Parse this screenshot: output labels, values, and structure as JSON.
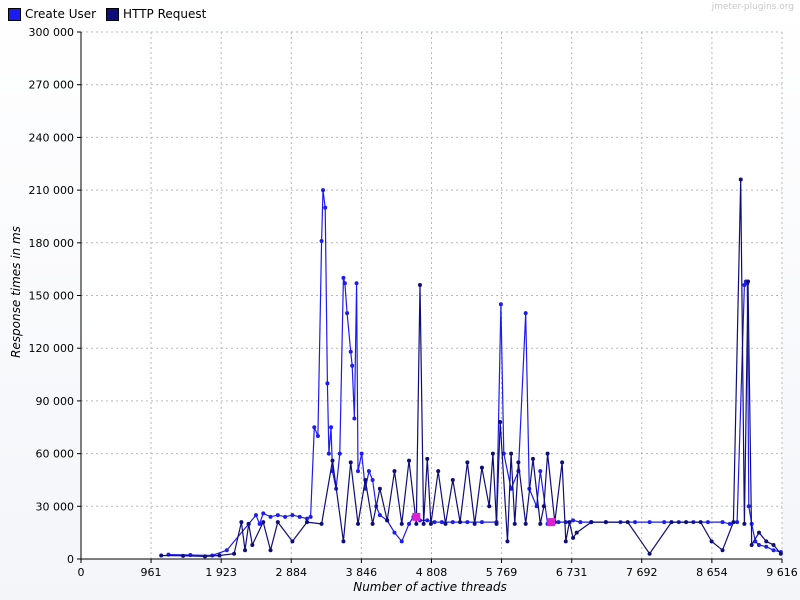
{
  "watermark": "jmeter-plugins.org",
  "legend": [
    {
      "name": "Create User",
      "color": "#1c1cf0"
    },
    {
      "name": "HTTP Request",
      "color": "#0e0e7a"
    }
  ],
  "chart_data": {
    "type": "line",
    "xlabel": "Number of active threads",
    "ylabel": "Response times in ms",
    "xlim": [
      0,
      9616
    ],
    "ylim": [
      0,
      300000
    ],
    "x_ticks": [
      "0",
      "961",
      "1 923",
      "2 884",
      "3 846",
      "4 808",
      "5 769",
      "6 731",
      "7 692",
      "8 654",
      "9 616"
    ],
    "x_tick_values": [
      0,
      961,
      1923,
      2884,
      3846,
      4808,
      5769,
      6731,
      7692,
      8654,
      9616
    ],
    "y_ticks": [
      "0",
      "30 000",
      "60 000",
      "90 000",
      "120 000",
      "150 000",
      "180 000",
      "210 000",
      "240 000",
      "270 000",
      "300 000"
    ],
    "y_tick_values": [
      0,
      30000,
      60000,
      90000,
      120000,
      150000,
      180000,
      210000,
      240000,
      270000,
      300000
    ],
    "grid": true,
    "legend_position": "top-left",
    "series": [
      {
        "name": "Create User",
        "color": "#1c1cf0",
        "x": [
          1200,
          1500,
          1800,
          2000,
          2300,
          2400,
          2450,
          2500,
          2600,
          2700,
          2800,
          2900,
          3000,
          3100,
          3150,
          3200,
          3250,
          3300,
          3320,
          3350,
          3380,
          3400,
          3430,
          3450,
          3500,
          3550,
          3600,
          3620,
          3650,
          3700,
          3720,
          3750,
          3780,
          3800,
          3850,
          3900,
          3950,
          4000,
          4050,
          4100,
          4200,
          4300,
          4400,
          4500,
          4560,
          4650,
          4750,
          4850,
          4950,
          5100,
          5300,
          5500,
          5700,
          5760,
          5800,
          5900,
          6000,
          6100,
          6150,
          6250,
          6300,
          6400,
          6500,
          6550,
          6650,
          6750,
          6850,
          7000,
          7200,
          7400,
          7600,
          7800,
          8000,
          8200,
          8400,
          8600,
          8800,
          8900,
          9000,
          9100,
          9120,
          9140,
          9160,
          9200,
          9250,
          9300,
          9400,
          9500,
          9600
        ],
        "y": [
          2500,
          2300,
          2000,
          5000,
          20000,
          25000,
          20000,
          26000,
          24000,
          25000,
          24000,
          25000,
          24000,
          23000,
          24000,
          75000,
          70000,
          181000,
          210000,
          200000,
          100000,
          60000,
          75000,
          50000,
          40000,
          60000,
          160000,
          157000,
          140000,
          118000,
          110000,
          80000,
          157000,
          50000,
          60000,
          40000,
          50000,
          45000,
          30000,
          25000,
          22000,
          15000,
          10000,
          20000,
          24000,
          22000,
          22000,
          21000,
          21000,
          21000,
          21000,
          21000,
          21000,
          145000,
          60000,
          40000,
          50000,
          140000,
          40000,
          30000,
          50000,
          20000,
          21000,
          21000,
          21000,
          22000,
          21000,
          21000,
          21000,
          21000,
          21000,
          21000,
          21000,
          21000,
          21000,
          21000,
          21000,
          20000,
          21000,
          156000,
          158000,
          157000,
          30000,
          20000,
          10000,
          8000,
          7000,
          5000,
          4000
        ]
      },
      {
        "name": "HTTP Request",
        "color": "#0e0e7a",
        "x": [
          1100,
          1400,
          1700,
          1900,
          2100,
          2200,
          2250,
          2300,
          2350,
          2500,
          2600,
          2700,
          2900,
          3100,
          3300,
          3450,
          3600,
          3700,
          3800,
          3900,
          4000,
          4100,
          4200,
          4300,
          4400,
          4500,
          4600,
          4650,
          4700,
          4750,
          4800,
          4900,
          5000,
          5100,
          5200,
          5300,
          5400,
          5500,
          5600,
          5650,
          5700,
          5750,
          5850,
          5900,
          5950,
          6000,
          6100,
          6200,
          6300,
          6350,
          6400,
          6500,
          6600,
          6650,
          6700,
          6750,
          6800,
          7000,
          7200,
          7500,
          7800,
          8100,
          8300,
          8500,
          8650,
          8800,
          8950,
          9050,
          9100,
          9150,
          9200,
          9300,
          9400,
          9500,
          9600
        ],
        "y": [
          2000,
          1800,
          1500,
          2000,
          3000,
          21000,
          5000,
          20000,
          8000,
          21000,
          5000,
          21000,
          10000,
          21000,
          20000,
          56000,
          10000,
          55000,
          20000,
          45000,
          20000,
          40000,
          22000,
          50000,
          20000,
          56000,
          20000,
          156000,
          20000,
          57000,
          20000,
          50000,
          20000,
          45000,
          21000,
          55000,
          20000,
          52000,
          30000,
          60000,
          20000,
          78000,
          10000,
          60000,
          20000,
          55000,
          20000,
          57000,
          20000,
          30000,
          60000,
          21000,
          55000,
          10000,
          21000,
          12000,
          15000,
          21000,
          21000,
          21000,
          3000,
          21000,
          21000,
          21000,
          10000,
          5000,
          21000,
          216000,
          20000,
          158000,
          8000,
          15000,
          10000,
          8000,
          3000
        ]
      }
    ],
    "annotations": [
      {
        "x": 4600,
        "y": 24000,
        "color": "#e020d0"
      },
      {
        "x": 6450,
        "y": 21000,
        "color": "#e020d0"
      }
    ]
  }
}
